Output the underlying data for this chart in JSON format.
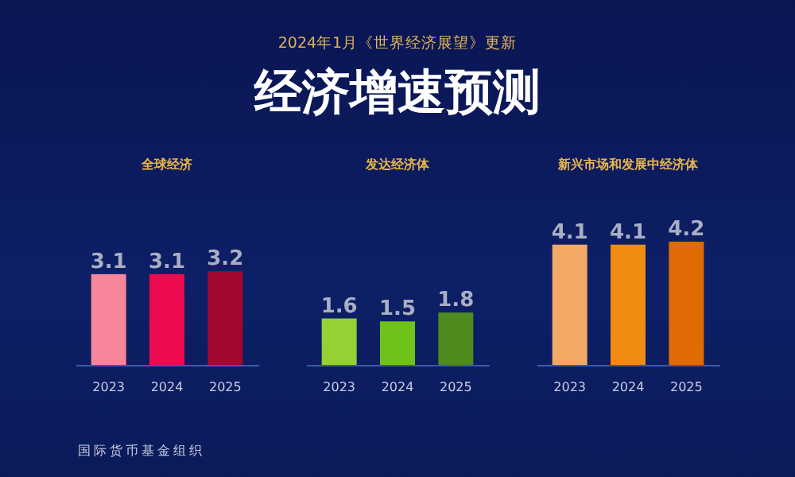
{
  "chart_data": [
    {
      "type": "bar",
      "title": "全球经济",
      "categories": [
        "2023",
        "2024",
        "2025"
      ],
      "values": [
        3.1,
        3.1,
        3.2
      ],
      "colors": [
        "#f7869a",
        "#ee0a4e",
        "#a3062f"
      ],
      "data_labels": true,
      "annotations": [
        "2024年1月《世界经济展望》更新",
        "经济增速预测",
        "国际货币基金组织"
      ]
    },
    {
      "type": "bar",
      "title": "发达经济体",
      "categories": [
        "2023",
        "2024",
        "2025"
      ],
      "values": [
        1.6,
        1.5,
        1.8
      ],
      "colors": [
        "#93d232",
        "#6fc21a",
        "#4f8a1e"
      ],
      "data_labels": true
    },
    {
      "type": "bar",
      "title": "新兴市场和发展中经济体",
      "categories": [
        "2023",
        "2024",
        "2025"
      ],
      "values": [
        4.1,
        4.1,
        4.2
      ],
      "colors": [
        "#f4a865",
        "#f08c12",
        "#e06a04"
      ],
      "data_labels": true
    }
  ]
}
